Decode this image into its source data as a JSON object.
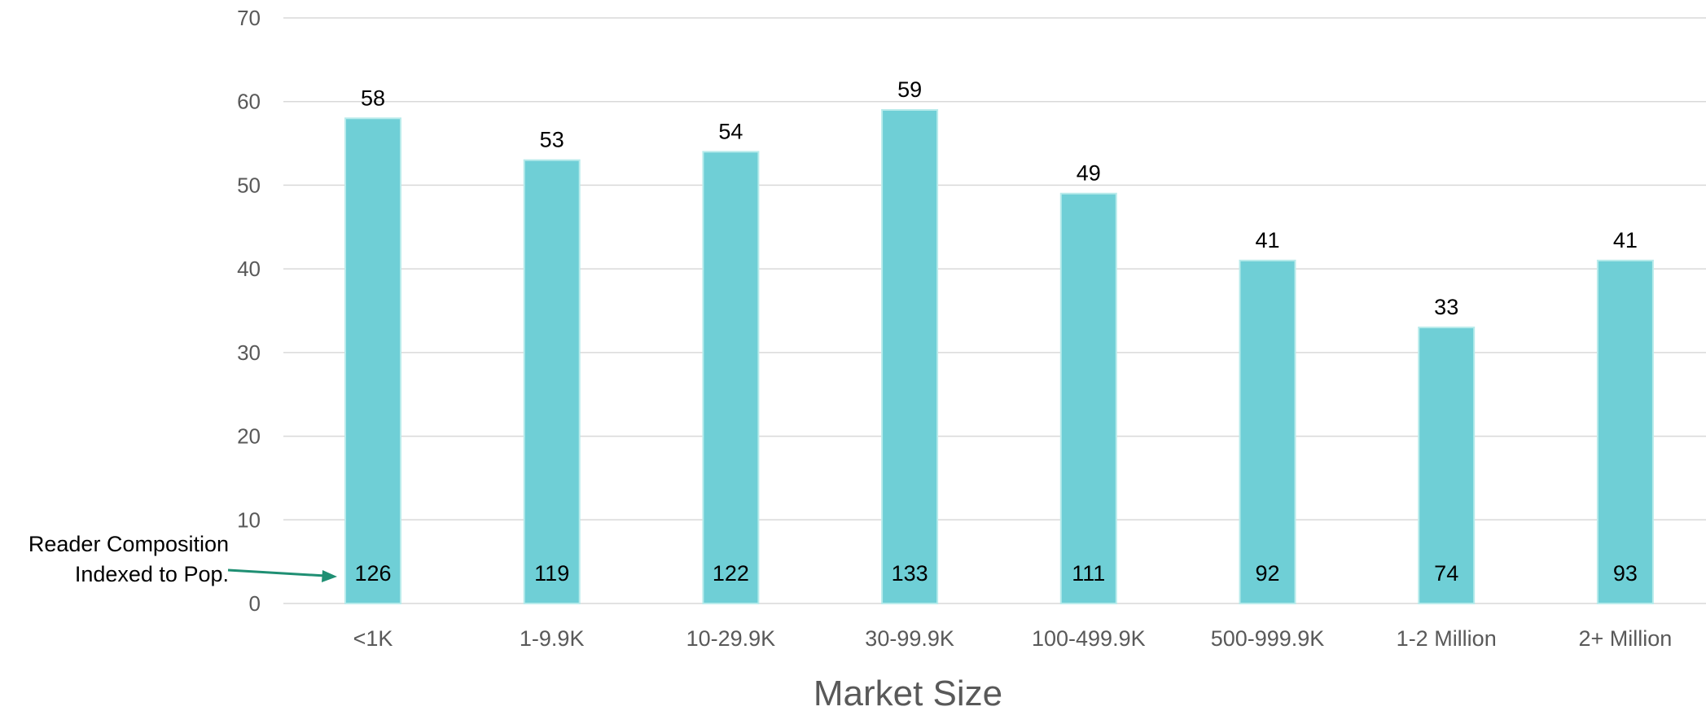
{
  "chart_data": {
    "type": "bar",
    "categories": [
      "<1K",
      "1-9.9K",
      "10-29.9K",
      "30-99.9K",
      "100-499.9K",
      "500-999.9K",
      "1-2 Million",
      "2+ Million"
    ],
    "values": [
      58,
      53,
      54,
      59,
      49,
      41,
      33,
      41
    ],
    "index_values": [
      126,
      119,
      122,
      133,
      111,
      92,
      74,
      93
    ],
    "xlabel": "Market Size",
    "ylabel": "",
    "ylim": [
      0,
      70
    ],
    "yticks": [
      0,
      10,
      20,
      30,
      40,
      50,
      60,
      70
    ],
    "grid": true,
    "bar_color": "#6fcfd6",
    "annotation": {
      "lines": [
        "Reader Composition",
        "Indexed to Pop."
      ],
      "arrow_color": "#1f8f73"
    }
  }
}
